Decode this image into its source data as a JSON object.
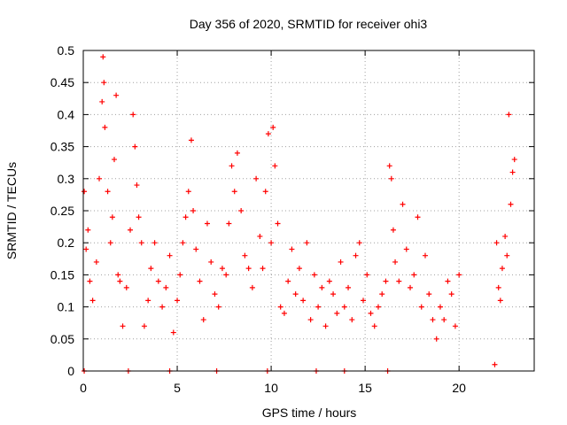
{
  "chart_data": {
    "type": "scatter",
    "title": "Day 356 of 2020, SRMTID for receiver ohi3",
    "xlabel": "GPS time / hours",
    "ylabel": "SRMTID / TECUs",
    "xlim": [
      0,
      24
    ],
    "ylim": [
      0,
      0.5
    ],
    "grid": true,
    "xticks": [
      0,
      5,
      10,
      15,
      20
    ],
    "xtick_labels": [
      "0",
      "5",
      "10",
      "15",
      "20"
    ],
    "yticks": [
      0,
      0.05,
      0.1,
      0.15,
      0.2,
      0.25,
      0.3,
      0.35,
      0.4,
      0.45,
      0.5
    ],
    "ytick_labels": [
      "0",
      "0.05",
      "0.1",
      "0.15",
      "0.2",
      "0.25",
      "0.3",
      "0.35",
      "0.4",
      "0.45",
      "0.5"
    ],
    "series": [
      {
        "name": "SRMTID",
        "color": "#ff0000",
        "marker": "plus",
        "x": [
          0.05,
          0.15,
          0.25,
          0.35,
          0.5,
          0.7,
          0.85,
          1.0,
          1.05,
          1.1,
          1.15,
          1.3,
          1.45,
          1.55,
          1.65,
          1.75,
          1.85,
          1.95,
          2.1,
          2.3,
          2.5,
          2.65,
          2.75,
          2.85,
          2.95,
          3.1,
          3.25,
          3.45,
          3.6,
          3.8,
          4.0,
          4.2,
          4.4,
          4.6,
          4.8,
          5.0,
          5.15,
          5.3,
          5.45,
          5.6,
          5.75,
          5.85,
          6.0,
          6.2,
          6.4,
          6.6,
          6.8,
          7.0,
          7.2,
          7.4,
          7.6,
          7.75,
          7.9,
          8.05,
          8.2,
          8.4,
          8.6,
          8.8,
          9.0,
          9.2,
          9.4,
          9.55,
          9.7,
          9.85,
          10.0,
          10.1,
          10.2,
          10.35,
          10.5,
          10.7,
          10.9,
          11.1,
          11.3,
          11.5,
          11.7,
          11.9,
          12.1,
          12.3,
          12.5,
          12.7,
          12.9,
          13.1,
          13.3,
          13.5,
          13.7,
          13.9,
          14.1,
          14.3,
          14.5,
          14.7,
          14.9,
          15.1,
          15.3,
          15.5,
          15.7,
          15.9,
          16.1,
          16.3,
          16.4,
          16.5,
          16.6,
          16.8,
          17.0,
          17.2,
          17.4,
          17.6,
          17.8,
          18.0,
          18.2,
          18.4,
          18.6,
          18.8,
          19.0,
          19.2,
          19.4,
          19.6,
          19.8,
          20.0,
          22.0,
          22.1,
          22.2,
          22.3,
          22.45,
          22.55,
          22.65,
          22.75,
          22.85,
          22.95,
          0.05,
          2.4,
          4.6,
          7.1,
          9.8,
          12.4,
          13.9,
          16.2,
          21.9
        ],
        "y": [
          0.28,
          0.19,
          0.22,
          0.14,
          0.11,
          0.17,
          0.3,
          0.42,
          0.49,
          0.45,
          0.38,
          0.28,
          0.2,
          0.24,
          0.33,
          0.43,
          0.15,
          0.14,
          0.07,
          0.13,
          0.22,
          0.4,
          0.35,
          0.29,
          0.24,
          0.2,
          0.07,
          0.11,
          0.16,
          0.2,
          0.14,
          0.1,
          0.13,
          0.18,
          0.06,
          0.11,
          0.15,
          0.2,
          0.24,
          0.28,
          0.36,
          0.25,
          0.19,
          0.14,
          0.08,
          0.23,
          0.17,
          0.12,
          0.1,
          0.16,
          0.15,
          0.23,
          0.32,
          0.28,
          0.34,
          0.25,
          0.18,
          0.16,
          0.13,
          0.3,
          0.21,
          0.16,
          0.28,
          0.37,
          0.2,
          0.38,
          0.32,
          0.23,
          0.1,
          0.09,
          0.14,
          0.19,
          0.12,
          0.16,
          0.11,
          0.2,
          0.08,
          0.15,
          0.1,
          0.13,
          0.07,
          0.14,
          0.12,
          0.09,
          0.17,
          0.1,
          0.13,
          0.08,
          0.18,
          0.2,
          0.11,
          0.15,
          0.09,
          0.07,
          0.1,
          0.12,
          0.14,
          0.32,
          0.3,
          0.22,
          0.17,
          0.14,
          0.26,
          0.19,
          0.13,
          0.15,
          0.24,
          0.1,
          0.18,
          0.12,
          0.08,
          0.05,
          0.1,
          0.08,
          0.14,
          0.12,
          0.07,
          0.15,
          0.2,
          0.13,
          0.11,
          0.16,
          0.21,
          0.18,
          0.4,
          0.26,
          0.31,
          0.33,
          0.0,
          0.0,
          0.0,
          0.0,
          0.0,
          0.0,
          0.0,
          0.0,
          0.01
        ]
      }
    ]
  }
}
